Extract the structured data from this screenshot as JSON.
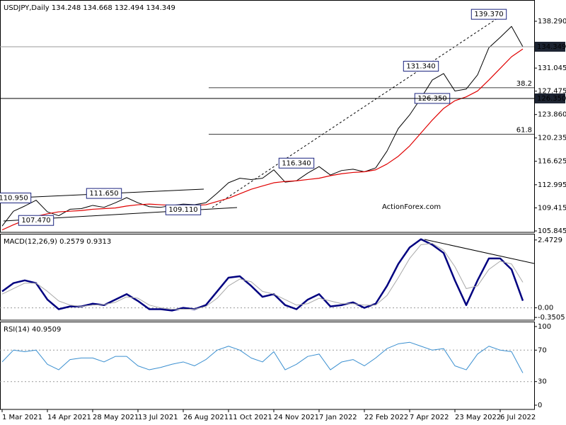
{
  "chart_data": [
    {
      "type": "line",
      "title": "USDJPY,Daily 134.248 134.668 132.494 134.349",
      "watermark": "ActionForex.com",
      "categories": [
        "1 Mar 2021",
        null,
        null,
        null,
        "14 Apr 2021",
        null,
        null,
        null,
        "28 May 2021",
        null,
        null,
        null,
        "13 Jul 2021",
        null,
        null,
        null,
        "26 Aug 2021",
        null,
        null,
        null,
        "11 Oct 2021",
        null,
        null,
        null,
        "24 Nov 2021",
        null,
        null,
        null,
        "7 Jan 2022",
        null,
        null,
        null,
        "22 Feb 2022",
        null,
        null,
        null,
        "7 Apr 2022",
        null,
        null,
        null,
        "23 May 2022",
        null,
        null,
        null,
        "6 Jul 2022",
        null,
        null
      ],
      "ylim": [
        105.63,
        141.58
      ],
      "yticks": [
        105.845,
        109.415,
        112.995,
        116.625,
        120.235,
        {
          "value": 123.86,
          "label": "123.860"
        },
        127.475,
        131.045,
        {
          "value": 138.29,
          "label": "138.290"
        }
      ],
      "series": [
        {
          "color": "#000000",
          "width": 1,
          "values": [
            106.6,
            108.9,
            109.7,
            110.6,
            108.8,
            108.2,
            109.2,
            109.3,
            109.8,
            109.5,
            110.2,
            111.0,
            110.2,
            109.6,
            109.5,
            109.8,
            110.0,
            109.9,
            110.2,
            111.7,
            113.3,
            114.0,
            113.8,
            114.0,
            115.3,
            113.4,
            113.6,
            114.8,
            115.8,
            114.5,
            115.2,
            115.4,
            115.0,
            115.6,
            118.2,
            121.7,
            123.8,
            126.4,
            129.2,
            130.2,
            127.5,
            127.8,
            130.0,
            134.2,
            135.8,
            137.5,
            134.349
          ]
        },
        {
          "color": "#e00000",
          "width": 1.2,
          "values": [
            106.0,
            106.8,
            107.5,
            108.1,
            108.5,
            108.8,
            108.9,
            109.0,
            109.2,
            109.3,
            109.4,
            109.7,
            109.9,
            110.0,
            109.9,
            109.8,
            109.7,
            109.8,
            109.9,
            110.4,
            110.9,
            111.6,
            112.3,
            112.8,
            113.3,
            113.5,
            113.6,
            113.8,
            114.0,
            114.4,
            114.7,
            114.9,
            115.0,
            115.3,
            116.2,
            117.4,
            119.0,
            121.0,
            123.0,
            124.8,
            126.0,
            126.6,
            127.5,
            129.2,
            131.0,
            132.8,
            134.0
          ]
        }
      ],
      "annotations": [
        {
          "label": "139.370",
          "value": 139.37,
          "x": 43
        },
        {
          "label": "131.340",
          "value": 131.34,
          "x": 37
        },
        {
          "label": "126.350",
          "value": 126.35,
          "x": 38
        },
        {
          "label": "116.340",
          "value": 116.34,
          "x": 26
        },
        {
          "label": "111.650",
          "value": 111.65,
          "x": 9
        },
        {
          "label": "110.950",
          "value": 110.95,
          "x": 1
        },
        {
          "label": "107.470",
          "value": 107.47,
          "x": 3
        },
        {
          "label": "109.110",
          "value": 109.11,
          "x": 16
        }
      ],
      "price_lines": [
        {
          "label": "134.349",
          "value": 134.349,
          "color": "#999999"
        },
        {
          "label": "126.350",
          "value": 126.35,
          "color": "#000000"
        }
      ],
      "fib_levels": [
        {
          "level": 38.2,
          "price": 128.0
        },
        {
          "level": 61.8,
          "price": 120.8
        }
      ]
    },
    {
      "type": "line",
      "title": "MACD(12,26,9) 0.2579 0.9313",
      "ylim": [
        -0.45,
        2.7
      ],
      "yticks": [
        -0.3505,
        {
          "value": 0,
          "label": "0.00"
        },
        2.4729
      ],
      "levels": [
        0
      ],
      "series": [
        {
          "color": "#000080",
          "width": 2.5,
          "values": [
            0.6,
            0.9,
            1.0,
            0.9,
            0.3,
            -0.05,
            0.05,
            0.05,
            0.15,
            0.1,
            0.3,
            0.5,
            0.25,
            -0.05,
            -0.05,
            -0.1,
            0.0,
            -0.05,
            0.1,
            0.6,
            1.1,
            1.15,
            0.8,
            0.4,
            0.5,
            0.1,
            -0.05,
            0.3,
            0.5,
            0.05,
            0.1,
            0.2,
            0.0,
            0.15,
            0.8,
            1.6,
            2.2,
            2.5,
            2.3,
            2.0,
            1.0,
            0.1,
            1.0,
            1.8,
            1.8,
            1.4,
            0.2579
          ]
        },
        {
          "color": "#a8a8a8",
          "width": 1,
          "values": [
            0.5,
            0.7,
            0.9,
            0.9,
            0.6,
            0.25,
            0.1,
            0.05,
            0.1,
            0.12,
            0.2,
            0.4,
            0.35,
            0.1,
            0.0,
            -0.05,
            -0.05,
            -0.05,
            0.05,
            0.35,
            0.8,
            1.05,
            0.95,
            0.6,
            0.5,
            0.3,
            0.1,
            0.15,
            0.35,
            0.25,
            0.15,
            0.15,
            0.1,
            0.1,
            0.45,
            1.1,
            1.8,
            2.3,
            2.35,
            2.1,
            1.5,
            0.7,
            0.8,
            1.4,
            1.7,
            1.6,
            0.9313
          ]
        }
      ]
    },
    {
      "type": "line",
      "title": "RSI(14) 40.9509",
      "ylim": [
        -5.4,
        106.3
      ],
      "yticks": [
        0,
        30,
        70,
        100
      ],
      "levels": [
        30,
        70
      ],
      "series": [
        {
          "color": "#3a8fd0",
          "width": 1,
          "values": [
            55,
            70,
            68,
            70,
            52,
            45,
            58,
            60,
            60,
            55,
            62,
            62,
            50,
            45,
            48,
            52,
            55,
            50,
            58,
            70,
            75,
            70,
            60,
            55,
            68,
            45,
            52,
            62,
            65,
            45,
            55,
            58,
            50,
            60,
            72,
            78,
            80,
            75,
            70,
            72,
            50,
            45,
            65,
            75,
            70,
            68,
            40.9509
          ]
        }
      ]
    }
  ]
}
